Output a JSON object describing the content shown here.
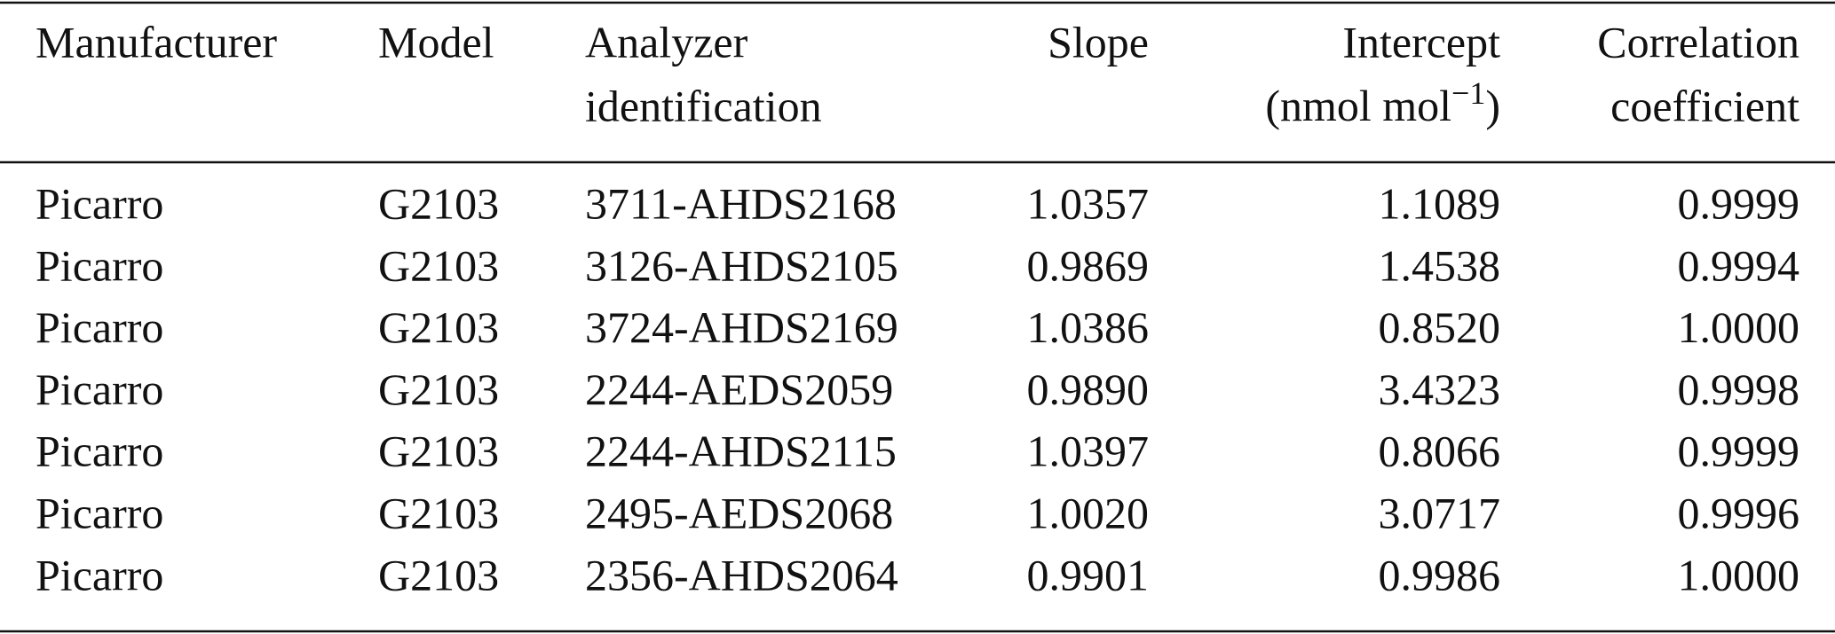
{
  "table": {
    "header": [
      {
        "lines": [
          "Manufacturer"
        ]
      },
      {
        "lines": [
          "Model"
        ]
      },
      {
        "lines": [
          "Analyzer",
          "identification"
        ]
      },
      {
        "lines": [
          "Slope"
        ]
      },
      {
        "lines": [
          "Intercept",
          "(nmol mol"
        ],
        "sup": "−1",
        "tail": ")"
      },
      {
        "lines": [
          "Correlation",
          "coefficient"
        ]
      }
    ],
    "rows": [
      [
        "Picarro",
        "G2103",
        "3711-AHDS2168",
        "1.0357",
        "1.1089",
        "0.9999"
      ],
      [
        "Picarro",
        "G2103",
        "3126-AHDS2105",
        "0.9869",
        "1.4538",
        "0.9994"
      ],
      [
        "Picarro",
        "G2103",
        "3724-AHDS2169",
        "1.0386",
        "0.8520",
        "1.0000"
      ],
      [
        "Picarro",
        "G2103",
        "2244-AEDS2059",
        "0.9890",
        "3.4323",
        "0.9998"
      ],
      [
        "Picarro",
        "G2103",
        "2244-AHDS2115",
        "1.0397",
        "0.8066",
        "0.9999"
      ],
      [
        "Picarro",
        "G2103",
        "2495-AEDS2068",
        "1.0020",
        "3.0717",
        "0.9996"
      ],
      [
        "Picarro",
        "G2103",
        "2356-AHDS2064",
        "0.9901",
        "0.9986",
        "1.0000"
      ]
    ]
  }
}
